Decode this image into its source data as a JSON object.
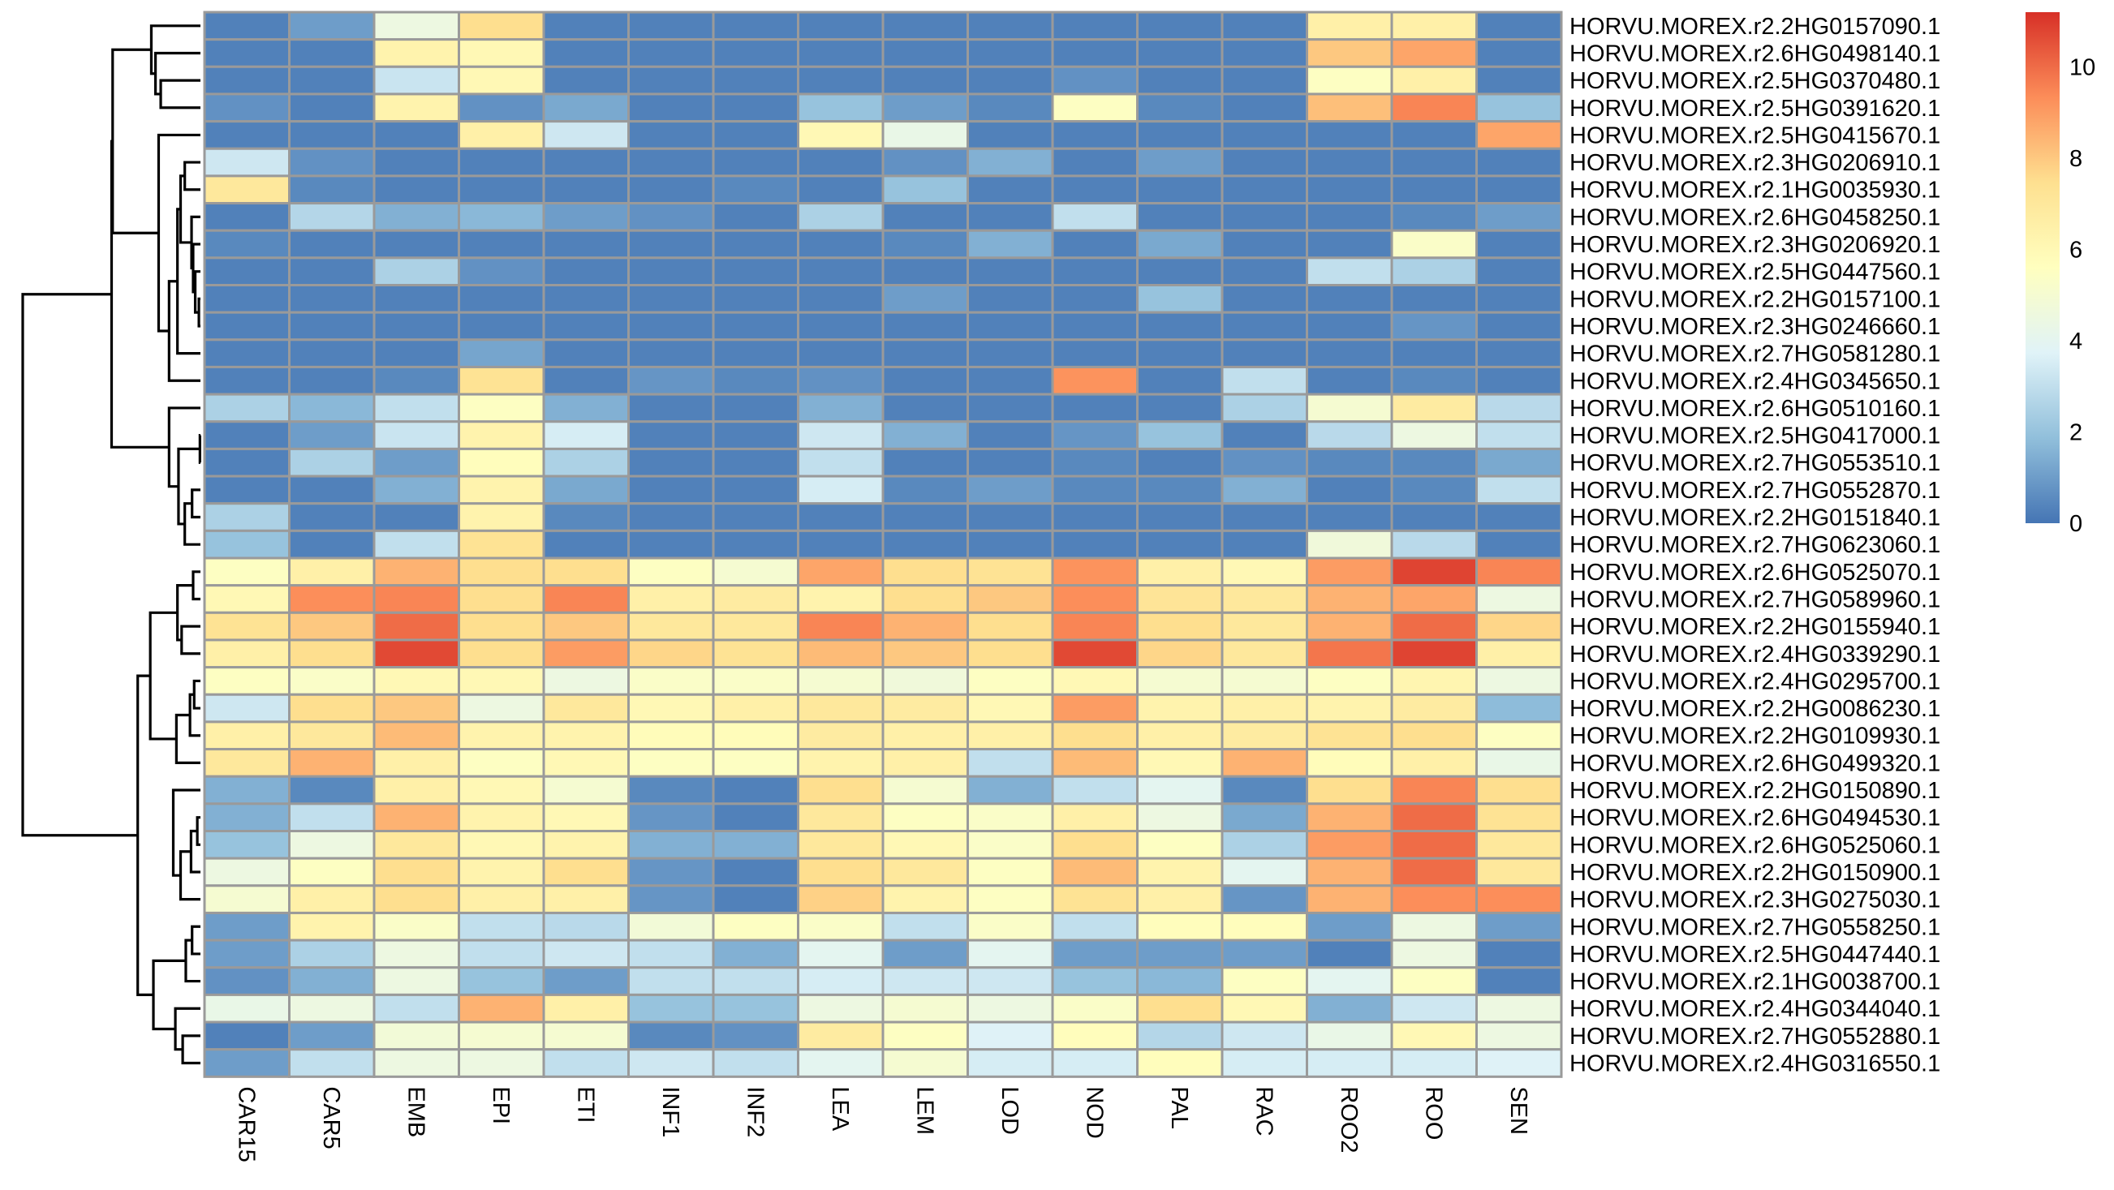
{
  "chart_data": {
    "type": "heatmap",
    "title": "",
    "columns": [
      "CAR15",
      "CAR5",
      "EMB",
      "EPI",
      "ETI",
      "INF1",
      "INF2",
      "LEA",
      "LEM",
      "LOD",
      "NOD",
      "PAL",
      "RAC",
      "ROO2",
      "ROO",
      "SEN"
    ],
    "rows": [
      "HORVU.MOREX.r2.2HG0157090.1",
      "HORVU.MOREX.r2.6HG0498140.1",
      "HORVU.MOREX.r2.5HG0370480.1",
      "HORVU.MOREX.r2.5HG0391620.1",
      "HORVU.MOREX.r2.5HG0415670.1",
      "HORVU.MOREX.r2.3HG0206910.1",
      "HORVU.MOREX.r2.1HG0035930.1",
      "HORVU.MOREX.r2.6HG0458250.1",
      "HORVU.MOREX.r2.3HG0206920.1",
      "HORVU.MOREX.r2.5HG0447560.1",
      "HORVU.MOREX.r2.2HG0157100.1",
      "HORVU.MOREX.r2.3HG0246660.1",
      "HORVU.MOREX.r2.7HG0581280.1",
      "HORVU.MOREX.r2.4HG0345650.1",
      "HORVU.MOREX.r2.6HG0510160.1",
      "HORVU.MOREX.r2.5HG0417000.1",
      "HORVU.MOREX.r2.7HG0553510.1",
      "HORVU.MOREX.r2.7HG0552870.1",
      "HORVU.MOREX.r2.2HG0151840.1",
      "HORVU.MOREX.r2.7HG0623060.1",
      "HORVU.MOREX.r2.6HG0525070.1",
      "HORVU.MOREX.r2.7HG0589960.1",
      "HORVU.MOREX.r2.2HG0155940.1",
      "HORVU.MOREX.r2.4HG0339290.1",
      "HORVU.MOREX.r2.4HG0295700.1",
      "HORVU.MOREX.r2.2HG0086230.1",
      "HORVU.MOREX.r2.2HG0109930.1",
      "HORVU.MOREX.r2.6HG0499320.1",
      "HORVU.MOREX.r2.2HG0150890.1",
      "HORVU.MOREX.r2.6HG0494530.1",
      "HORVU.MOREX.r2.6HG0525060.1",
      "HORVU.MOREX.r2.2HG0150900.1",
      "HORVU.MOREX.r2.3HG0275030.1",
      "HORVU.MOREX.r2.7HG0558250.1",
      "HORVU.MOREX.r2.5HG0447440.1",
      "HORVU.MOREX.r2.1HG0038700.1",
      "HORVU.MOREX.r2.4HG0344040.1",
      "HORVU.MOREX.r2.7HG0552880.1",
      "HORVU.MOREX.r2.4HG0316550.1"
    ],
    "values": [
      [
        0.3,
        1.0,
        4.5,
        7.5,
        0.3,
        0.3,
        0.3,
        0.3,
        0.3,
        0.3,
        0.3,
        0.3,
        0.3,
        6.5,
        6.5,
        0.3
      ],
      [
        0.3,
        0.3,
        6.3,
        6.0,
        0.3,
        0.3,
        0.3,
        0.3,
        0.3,
        0.3,
        0.3,
        0.3,
        0.3,
        8.0,
        8.8,
        0.3
      ],
      [
        0.3,
        0.3,
        3.2,
        6.0,
        0.3,
        0.3,
        0.3,
        0.3,
        0.3,
        0.3,
        0.7,
        0.3,
        0.3,
        5.5,
        6.5,
        0.3
      ],
      [
        0.7,
        0.3,
        6.3,
        0.7,
        1.3,
        0.3,
        0.3,
        2.0,
        1.0,
        0.5,
        5.5,
        0.5,
        0.3,
        8.2,
        9.5,
        2.0
      ],
      [
        0.3,
        0.3,
        0.3,
        6.5,
        3.3,
        0.3,
        0.3,
        6.0,
        4.3,
        0.3,
        0.3,
        0.3,
        0.3,
        0.3,
        0.3,
        8.8
      ],
      [
        3.3,
        0.7,
        0.3,
        0.3,
        0.3,
        0.3,
        0.3,
        0.3,
        0.7,
        1.5,
        0.3,
        1.0,
        0.3,
        0.3,
        0.3,
        0.3
      ],
      [
        7.0,
        0.5,
        0.3,
        0.3,
        0.3,
        0.3,
        0.5,
        0.3,
        2.0,
        0.3,
        0.3,
        0.3,
        0.3,
        0.3,
        0.3,
        0.3
      ],
      [
        0.3,
        2.7,
        1.5,
        1.7,
        1.0,
        0.7,
        0.3,
        2.5,
        0.3,
        0.3,
        3.0,
        0.3,
        0.3,
        0.3,
        0.5,
        1.0
      ],
      [
        0.5,
        0.3,
        0.3,
        0.3,
        0.3,
        0.3,
        0.3,
        0.3,
        0.5,
        1.5,
        0.3,
        1.3,
        0.3,
        0.3,
        5.3,
        0.3
      ],
      [
        0.3,
        0.3,
        2.5,
        0.7,
        0.3,
        0.3,
        0.3,
        0.3,
        0.3,
        0.3,
        0.3,
        0.3,
        0.3,
        3.0,
        2.5,
        0.3
      ],
      [
        0.3,
        0.3,
        0.3,
        0.3,
        0.3,
        0.3,
        0.3,
        0.3,
        1.0,
        0.3,
        0.3,
        2.0,
        0.3,
        0.3,
        0.3,
        0.3
      ],
      [
        0.3,
        0.3,
        0.3,
        0.3,
        0.3,
        0.3,
        0.3,
        0.3,
        0.3,
        0.3,
        0.3,
        0.3,
        0.3,
        0.3,
        0.8,
        0.3
      ],
      [
        0.3,
        0.3,
        0.3,
        1.2,
        0.3,
        0.3,
        0.3,
        0.3,
        0.3,
        0.3,
        0.3,
        0.3,
        0.3,
        0.3,
        0.3,
        0.3
      ],
      [
        0.3,
        0.3,
        0.5,
        7.3,
        0.3,
        0.8,
        0.5,
        0.7,
        0.3,
        0.3,
        9.2,
        0.3,
        3.0,
        0.3,
        0.5,
        0.3
      ],
      [
        2.5,
        1.7,
        3.0,
        5.5,
        1.5,
        0.3,
        0.3,
        1.5,
        0.3,
        0.3,
        0.3,
        0.3,
        2.5,
        5.0,
        6.8,
        2.8
      ],
      [
        0.3,
        1.0,
        3.2,
        6.3,
        3.5,
        0.3,
        0.3,
        3.3,
        1.5,
        0.3,
        0.8,
        2.0,
        0.3,
        2.8,
        4.5,
        3.0
      ],
      [
        0.3,
        2.5,
        1.0,
        5.7,
        2.5,
        0.3,
        0.3,
        3.0,
        0.3,
        0.3,
        0.5,
        0.3,
        0.7,
        0.5,
        0.5,
        1.3
      ],
      [
        0.3,
        0.3,
        1.5,
        6.3,
        1.3,
        0.3,
        0.3,
        3.5,
        0.5,
        1.0,
        0.5,
        0.5,
        1.5,
        0.3,
        0.5,
        3.0
      ],
      [
        2.5,
        0.3,
        0.3,
        6.3,
        0.5,
        0.3,
        0.3,
        0.3,
        0.3,
        0.3,
        0.3,
        0.3,
        0.3,
        0.3,
        0.3,
        0.3
      ],
      [
        2.0,
        0.3,
        3.0,
        7.3,
        0.3,
        0.3,
        0.3,
        0.3,
        0.3,
        0.3,
        0.3,
        0.3,
        0.3,
        4.7,
        2.8,
        0.3
      ],
      [
        5.5,
        6.5,
        8.5,
        7.5,
        7.5,
        5.5,
        5.0,
        8.8,
        7.5,
        7.3,
        9.2,
        6.5,
        6.0,
        9.0,
        10.8,
        9.5
      ],
      [
        6.0,
        9.3,
        9.5,
        7.5,
        9.5,
        6.5,
        6.8,
        6.3,
        7.5,
        8.0,
        9.3,
        7.2,
        7.0,
        8.5,
        8.8,
        4.5
      ],
      [
        7.3,
        8.0,
        10.0,
        7.5,
        8.0,
        7.0,
        7.0,
        9.5,
        8.5,
        7.5,
        9.5,
        7.5,
        7.0,
        8.5,
        10.0,
        7.7
      ],
      [
        6.5,
        7.5,
        10.7,
        7.5,
        9.0,
        7.7,
        7.3,
        8.3,
        8.0,
        7.5,
        10.7,
        7.7,
        7.0,
        9.8,
        10.8,
        6.5
      ],
      [
        5.5,
        5.3,
        6.0,
        6.0,
        4.5,
        5.3,
        5.3,
        5.0,
        4.7,
        5.5,
        6.0,
        5.0,
        5.0,
        5.5,
        6.2,
        4.5
      ],
      [
        3.3,
        7.5,
        8.0,
        4.5,
        7.0,
        6.0,
        6.5,
        7.0,
        6.8,
        6.0,
        9.0,
        6.3,
        6.5,
        6.3,
        6.8,
        1.8
      ],
      [
        6.5,
        7.0,
        8.3,
        6.3,
        6.3,
        5.8,
        5.8,
        6.8,
        6.5,
        6.5,
        7.5,
        6.5,
        6.8,
        7.3,
        7.5,
        5.5
      ],
      [
        7.0,
        8.5,
        6.5,
        5.5,
        6.0,
        5.5,
        5.5,
        6.3,
        6.5,
        3.0,
        8.3,
        6.0,
        8.5,
        5.8,
        6.5,
        4.3
      ],
      [
        1.5,
        0.5,
        6.5,
        6.0,
        5.0,
        0.5,
        0.3,
        7.5,
        5.0,
        1.5,
        3.0,
        4.0,
        0.5,
        7.5,
        9.5,
        7.5
      ],
      [
        1.5,
        3.0,
        8.5,
        6.3,
        6.0,
        0.8,
        0.3,
        7.0,
        5.5,
        5.3,
        6.5,
        4.5,
        1.3,
        8.5,
        10.0,
        7.3
      ],
      [
        2.0,
        4.5,
        7.0,
        6.0,
        6.3,
        1.5,
        1.5,
        7.0,
        6.0,
        5.3,
        7.5,
        5.5,
        2.5,
        9.0,
        10.0,
        7.0
      ],
      [
        4.5,
        5.5,
        7.5,
        6.3,
        7.5,
        0.8,
        0.3,
        7.5,
        7.0,
        5.5,
        8.3,
        6.3,
        4.0,
        8.5,
        10.0,
        7.0
      ],
      [
        5.0,
        6.5,
        7.5,
        6.5,
        6.5,
        0.8,
        0.3,
        7.8,
        6.3,
        5.5,
        7.3,
        6.5,
        0.8,
        8.5,
        9.3,
        9.3
      ],
      [
        1.0,
        6.3,
        5.3,
        3.0,
        2.8,
        4.8,
        5.5,
        5.3,
        3.0,
        5.3,
        3.0,
        5.7,
        5.7,
        1.0,
        4.5,
        1.0
      ],
      [
        1.0,
        2.5,
        4.5,
        3.0,
        3.3,
        3.0,
        1.5,
        4.0,
        1.0,
        4.0,
        1.0,
        1.0,
        1.0,
        0.3,
        4.5,
        0.3
      ],
      [
        0.7,
        1.5,
        4.5,
        2.0,
        1.0,
        3.0,
        3.0,
        3.5,
        3.3,
        3.3,
        2.0,
        1.7,
        5.5,
        4.0,
        5.5,
        0.3
      ],
      [
        4.3,
        4.5,
        3.0,
        8.5,
        6.5,
        2.0,
        2.0,
        4.5,
        5.0,
        4.5,
        5.3,
        7.5,
        6.0,
        1.5,
        3.3,
        4.5
      ],
      [
        0.3,
        1.0,
        4.8,
        5.0,
        5.0,
        0.5,
        0.7,
        6.8,
        5.5,
        3.7,
        5.7,
        2.7,
        3.3,
        4.3,
        6.0,
        4.5
      ],
      [
        1.0,
        3.0,
        4.5,
        4.5,
        3.0,
        3.3,
        3.0,
        4.0,
        5.0,
        3.5,
        3.5,
        5.7,
        3.5,
        3.5,
        3.5,
        3.7
      ]
    ],
    "value_range": [
      0,
      11.2
    ],
    "colorbar": {
      "ticks": [
        0,
        2,
        4,
        6,
        8,
        10
      ],
      "colors": [
        "#4575B4",
        "#91BFDB",
        "#E0F3F8",
        "#FFFFBF",
        "#FEE090",
        "#FC8D59",
        "#D73027"
      ]
    },
    "dendrogram": {
      "side": "left",
      "leaf_order": "as rows",
      "merges": [
        [
          15,
          16,
          0.05
        ],
        [
          10,
          11,
          0.15
        ],
        [
          9,
          -2,
          0.5
        ],
        [
          8,
          -3,
          0.7
        ],
        [
          7,
          -4,
          0.85
        ],
        [
          5,
          6,
          1.5
        ],
        [
          -6,
          -5,
          1.9
        ],
        [
          12,
          -7,
          2.2
        ],
        [
          13,
          -8,
          3.0
        ],
        [
          4,
          -9,
          4.0
        ],
        [
          2,
          3,
          3.8
        ],
        [
          1,
          -11,
          4.3
        ],
        [
          0,
          -12,
          4.7
        ],
        [
          -10,
          -13,
          8.4
        ],
        [
          17,
          18,
          0.8
        ],
        [
          -15,
          19,
          1.5
        ],
        [
          -1,
          -16,
          2.1
        ],
        [
          14,
          -17,
          3.0
        ],
        [
          -14,
          -18,
          8.5
        ],
        [
          20,
          21,
          0.7
        ],
        [
          22,
          23,
          1.8
        ],
        [
          -20,
          -21,
          2.2
        ],
        [
          29,
          30,
          0.3
        ],
        [
          -23,
          31,
          0.9
        ],
        [
          -24,
          32,
          1.9
        ],
        [
          28,
          -25,
          2.6
        ],
        [
          33,
          34,
          0.8
        ],
        [
          -27,
          35,
          1.4
        ],
        [
          37,
          38,
          1.7
        ],
        [
          36,
          -29,
          2.4
        ],
        [
          -28,
          -30,
          4.5
        ],
        [
          24,
          25,
          0.6
        ],
        [
          -32,
          26,
          1.0
        ],
        [
          -33,
          27,
          2.3
        ],
        [
          -22,
          -34,
          4.8
        ],
        [
          -31,
          -35,
          6.0
        ],
        [
          -19,
          -36,
          17.0
        ]
      ]
    }
  }
}
